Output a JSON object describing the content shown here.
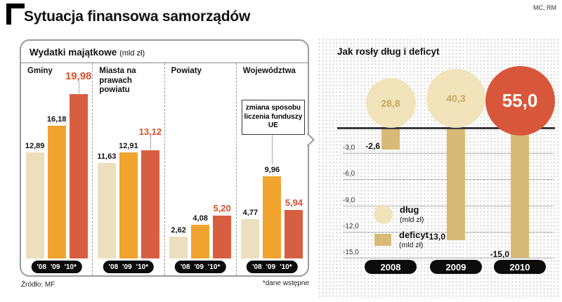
{
  "page_title": "Sytuacja finansowa samorządów",
  "attribution": "MC, RM",
  "left_panel": {
    "title": "Wydatki majątkowe",
    "title_unit": "(mld zł)",
    "source": "Źródło: MF",
    "footnote": "*dane wstępne",
    "annotation": "zmiana sposobu liczenia funduszy UE"
  },
  "right_panel": {
    "title": "Jak rosły dług i deficyt",
    "legend": [
      {
        "label": "dług",
        "unit": "(mld zł)",
        "icon": "circle-swatch-icon"
      },
      {
        "label": "deficyt",
        "unit": "(mld zł)",
        "icon": "square-swatch-icon"
      }
    ]
  },
  "chart_data": [
    {
      "type": "bar",
      "title": "Wydatki majątkowe (mld zł)",
      "categories": [
        "'08",
        "'09",
        "'10*"
      ],
      "series": [
        {
          "name": "Gminy",
          "values": [
            12.89,
            16.18,
            19.98
          ],
          "labels": [
            "12,89",
            "16,18",
            "19,98"
          ],
          "raised_label_index": 2,
          "raise": 14
        },
        {
          "name": "Miasta na prawach powiatu",
          "values": [
            11.63,
            12.91,
            13.12
          ],
          "labels": [
            "11,63",
            "12,91",
            "13,12"
          ],
          "raised_label_index": 2,
          "raise": 16
        },
        {
          "name": "Powiaty",
          "values": [
            2.62,
            4.08,
            5.2
          ],
          "labels": [
            "2,62",
            "4,08",
            "5,20"
          ]
        },
        {
          "name": "Województwa",
          "values": [
            4.77,
            9.96,
            5.94
          ],
          "labels": [
            "4,77",
            "9,96",
            "5,94"
          ],
          "annotation": "zmiana sposobu liczenia funduszy UE"
        }
      ],
      "ylim": [
        0,
        20
      ],
      "grid": false,
      "source": "Źródło: MF",
      "footnote": "*dane wstępne"
    },
    {
      "type": "combo",
      "title": "Jak rosły dług i deficyt",
      "categories": [
        "2008",
        "2009",
        "2010"
      ],
      "series": [
        {
          "name": "dług (mld zł)",
          "mark": "circle",
          "values": [
            28.8,
            40.3,
            55.0
          ],
          "labels": [
            "28,8",
            "40,3",
            "55,0"
          ]
        },
        {
          "name": "deficyt (mld zł)",
          "mark": "bar",
          "values": [
            -2.6,
            -13.0,
            -15.0
          ],
          "labels": [
            "-2,6",
            "-13,0",
            "-15,0"
          ]
        }
      ],
      "yticks": [
        "-3,0",
        "-6,0",
        "-9,0",
        "-12,0",
        "-15,0"
      ],
      "ylim": [
        -15,
        0
      ],
      "legend_position": "middle-left"
    }
  ],
  "colors": {
    "bar_2008": "#ebdfbe",
    "bar_2009": "#f0a42e",
    "bar_2010": "#d85e41",
    "highlight_text": "#d8502f",
    "deficit_bar": "#d8ba76",
    "debt_circle": "#f1e3ba",
    "debt_circle_2010": "#d8573a",
    "circle_text": "#c9a75f",
    "pill_bg": "#0c0c0c"
  }
}
